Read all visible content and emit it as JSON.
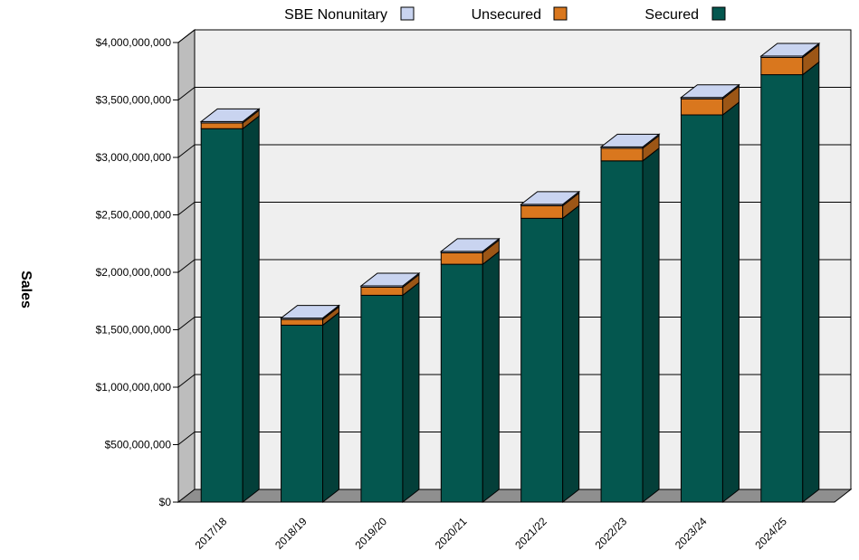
{
  "chart_data": {
    "type": "bar",
    "stacked": true,
    "three_d": true,
    "ylabel": "Sales",
    "xlabel": "",
    "ylim": [
      0,
      4000000000
    ],
    "y_ticks": [
      "$0",
      "$500,000,000",
      "$1,000,000,000",
      "$1,500,000,000",
      "$2,000,000,000",
      "$2,500,000,000",
      "$3,000,000,000",
      "$3,500,000,000",
      "$4,000,000,000"
    ],
    "categories": [
      "2017/18",
      "2018/19",
      "2019/20",
      "2020/21",
      "2021/22",
      "2022/23",
      "2023/24",
      "2024/25"
    ],
    "legend_position": "top",
    "grid": true,
    "series": [
      {
        "name": "Secured",
        "color": "#04574f",
        "values": [
          3250000000,
          1540000000,
          1800000000,
          2070000000,
          2470000000,
          2970000000,
          3370000000,
          3720000000
        ]
      },
      {
        "name": "Unsecured",
        "color": "#d9771e",
        "values": [
          50000000,
          50000000,
          70000000,
          100000000,
          110000000,
          110000000,
          140000000,
          150000000
        ]
      },
      {
        "name": "SBE Nonunitary",
        "color": "#c9d4f0",
        "values": [
          2000000,
          2000000,
          2000000,
          2000000,
          2000000,
          2000000,
          2000000,
          2000000
        ]
      }
    ],
    "legend": [
      "SBE Nonunitary",
      "Unsecured",
      "Secured"
    ]
  }
}
